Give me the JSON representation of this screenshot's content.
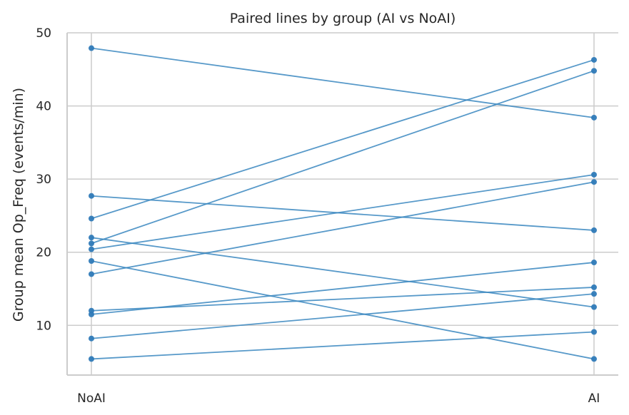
{
  "chart_data": {
    "type": "line",
    "title": "Paired lines by group (AI vs NoAI)",
    "xlabel": "",
    "ylabel": "Group mean Op_Freq (events/min)",
    "categories": [
      "NoAI",
      "AI"
    ],
    "ylim": [
      3.2,
      50
    ],
    "yticks": [
      10,
      20,
      30,
      40,
      50
    ],
    "grid": true,
    "color": "#3a87bf",
    "series": [
      {
        "values": [
          47.9,
          38.4
        ]
      },
      {
        "values": [
          27.7,
          23.0
        ]
      },
      {
        "values": [
          24.6,
          46.3
        ]
      },
      {
        "values": [
          22.0,
          12.5
        ]
      },
      {
        "values": [
          21.2,
          44.8
        ]
      },
      {
        "values": [
          20.4,
          30.6
        ]
      },
      {
        "values": [
          18.8,
          5.4
        ]
      },
      {
        "values": [
          17.0,
          29.6
        ]
      },
      {
        "values": [
          12.0,
          15.2
        ]
      },
      {
        "values": [
          11.5,
          18.6
        ]
      },
      {
        "values": [
          8.2,
          14.3
        ]
      },
      {
        "values": [
          5.4,
          9.1
        ]
      }
    ]
  }
}
